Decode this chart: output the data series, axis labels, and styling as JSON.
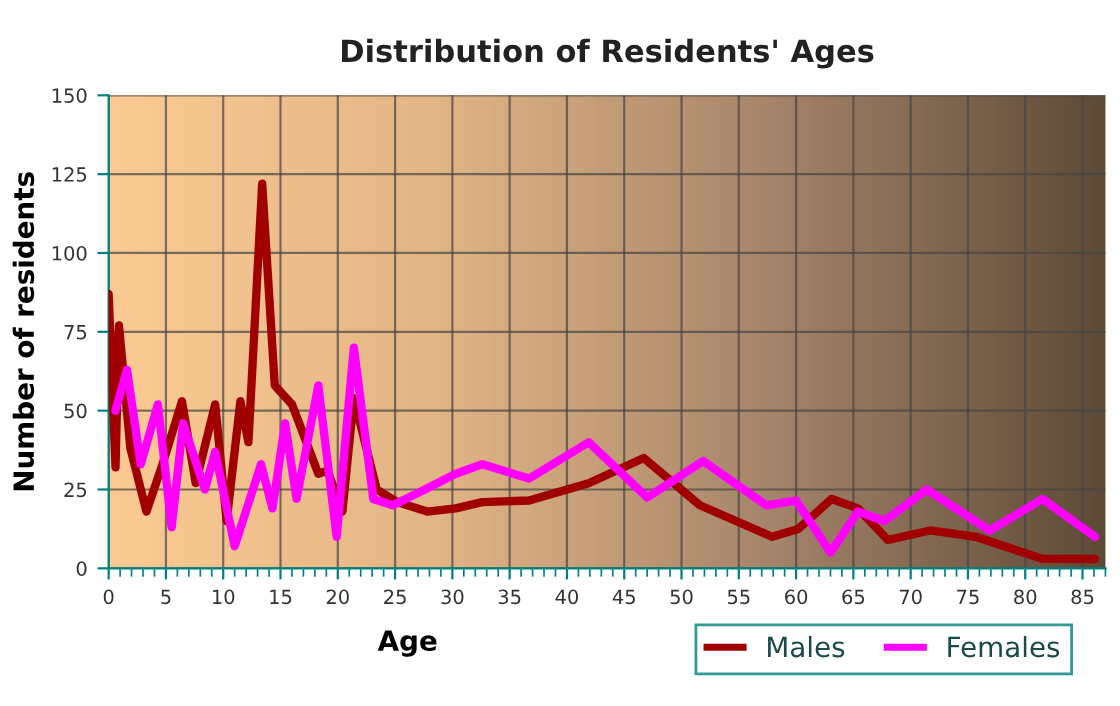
{
  "chart_data": {
    "type": "line",
    "title": "Distribution of Residents' Ages",
    "xlabel": "Age",
    "ylabel": "Number of residents",
    "xlim": [
      0,
      87
    ],
    "xticks": [
      0,
      5,
      10,
      15,
      20,
      25,
      30,
      35,
      40,
      45,
      50,
      55,
      60,
      65,
      70,
      75,
      80,
      85
    ],
    "ylim": [
      0,
      150
    ],
    "yticks": [
      0,
      25,
      50,
      75,
      100,
      125,
      150
    ],
    "grid": true,
    "legend": "bottom right",
    "line_style": "solid",
    "marker": "none",
    "series": [
      {
        "name": "Males",
        "color": "#a00000",
        "x": [
          0,
          0.6,
          0.9,
          1.9,
          3.3,
          4.7,
          6.4,
          7.6,
          9.3,
          10.3,
          11.5,
          12.2,
          13.4,
          14.5,
          16,
          18.3,
          19.1,
          20.4,
          21.4,
          23.4,
          25.2,
          27.8,
          30.3,
          32.6,
          36.7,
          41.9,
          46.7,
          51.6,
          57.9,
          60.2,
          63.1,
          65.4,
          68,
          71.7,
          75.7,
          81.5,
          86.1
        ],
        "values": [
          87,
          32,
          77,
          38,
          18,
          33,
          53,
          27,
          52,
          15,
          53,
          40,
          122,
          58,
          52,
          30,
          31,
          18,
          54,
          25,
          21,
          18,
          19,
          21,
          21.5,
          27,
          35,
          20,
          10,
          12.5,
          22,
          19,
          9,
          12,
          10,
          3,
          3
        ]
      },
      {
        "name": "Females",
        "color": "#ff00ff",
        "x": [
          0.6,
          1.6,
          2.8,
          4.3,
          5.5,
          6.5,
          8.4,
          9.3,
          11,
          13.3,
          14.3,
          15.4,
          16.4,
          18.3,
          19.9,
          21.4,
          23.1,
          24.8,
          27.6,
          30.3,
          32.6,
          36.7,
          41.9,
          47,
          51.9,
          57.4,
          60,
          63,
          65.4,
          67.7,
          71.4,
          76.9,
          81.5,
          86.1
        ],
        "values": [
          50,
          63,
          33,
          52,
          13,
          46,
          25,
          37,
          7,
          33,
          19,
          46,
          22,
          58,
          10,
          70,
          22,
          20,
          25,
          30,
          33,
          28.5,
          40,
          22.5,
          34,
          20,
          21.5,
          5,
          18,
          15,
          25,
          12,
          22,
          10
        ]
      }
    ]
  }
}
